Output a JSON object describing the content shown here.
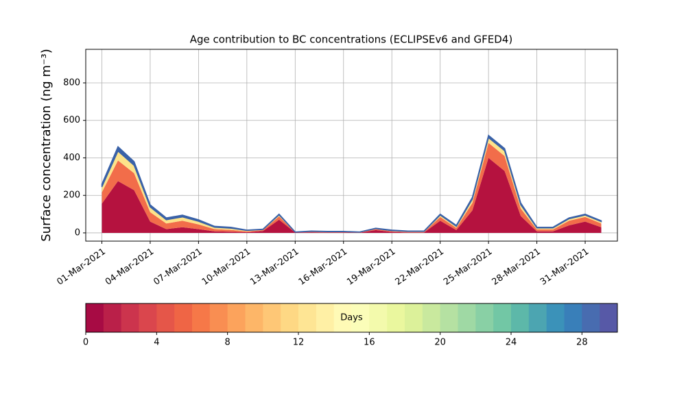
{
  "chart_data": {
    "type": "stacked_area",
    "title": "Age contribution to BC concentrations (ECLIPSEv6 and GFED4)",
    "y_label": "Surface concentration (ng m⁻³)",
    "x": [
      "01-Mar-2021",
      "02-Mar-2021",
      "03-Mar-2021",
      "04-Mar-2021",
      "05-Mar-2021",
      "06-Mar-2021",
      "07-Mar-2021",
      "08-Mar-2021",
      "09-Mar-2021",
      "10-Mar-2021",
      "11-Mar-2021",
      "12-Mar-2021",
      "13-Mar-2021",
      "14-Mar-2021",
      "15-Mar-2021",
      "16-Mar-2021",
      "17-Mar-2021",
      "18-Mar-2021",
      "19-Mar-2021",
      "20-Mar-2021",
      "21-Mar-2021",
      "22-Mar-2021",
      "23-Mar-2021",
      "24-Mar-2021",
      "25-Mar-2021",
      "26-Mar-2021",
      "27-Mar-2021",
      "28-Mar-2021",
      "29-Mar-2021",
      "30-Mar-2021",
      "31-Mar-2021",
      "01-Apr-2021"
    ],
    "series": [
      {
        "color": "#b5123f",
        "values": [
          156,
          276,
          228,
          60,
          20,
          30,
          20,
          8,
          6,
          3,
          10,
          70,
          2,
          3,
          2,
          2,
          1,
          15,
          5,
          2,
          2,
          65,
          15,
          120,
          400,
          330,
          90,
          8,
          8,
          40,
          60,
          30
        ]
      },
      {
        "color": "#f26d4a",
        "values": [
          60,
          110,
          90,
          50,
          30,
          35,
          25,
          12,
          10,
          5,
          5,
          18,
          1,
          3,
          2,
          2,
          2,
          5,
          4,
          3,
          3,
          20,
          12,
          40,
          80,
          80,
          40,
          10,
          10,
          25,
          25,
          20
        ]
      },
      {
        "color": "#fde38a",
        "values": [
          29,
          50,
          42,
          28,
          20,
          20,
          17,
          10,
          9,
          5,
          3,
          8,
          1,
          2,
          2,
          2,
          1,
          3,
          3,
          3,
          3,
          10,
          8,
          20,
          28,
          28,
          20,
          8,
          8,
          10,
          10,
          10
        ]
      },
      {
        "color": "#3a62a8",
        "values": [
          15,
          24,
          20,
          12,
          10,
          10,
          8,
          5,
          5,
          2,
          2,
          4,
          1,
          2,
          2,
          2,
          1,
          2,
          3,
          2,
          2,
          5,
          5,
          10,
          12,
          12,
          10,
          4,
          4,
          5,
          5,
          5
        ]
      }
    ],
    "xlim": [
      "28-Feb-2021",
      "02-Apr-2021"
    ],
    "xticks": [
      "01-Mar-2021",
      "04-Mar-2021",
      "07-Mar-2021",
      "10-Mar-2021",
      "13-Mar-2021",
      "16-Mar-2021",
      "19-Mar-2021",
      "22-Mar-2021",
      "25-Mar-2021",
      "28-Mar-2021",
      "31-Mar-2021"
    ],
    "ylim": [
      -44,
      979
    ],
    "yticks": [
      0,
      200,
      400,
      600,
      800
    ],
    "grid": true,
    "colorbar": {
      "label": "Days",
      "lim": [
        0,
        30
      ],
      "ticks": [
        0,
        4,
        8,
        12,
        16,
        20,
        24,
        28
      ],
      "colors": [
        "#9e0142",
        "#d53e4f",
        "#f46d43",
        "#fdae61",
        "#fee08b",
        "#ffffbf",
        "#e6f598",
        "#abdda4",
        "#66c2a5",
        "#3288bd",
        "#5e4fa2"
      ]
    }
  }
}
